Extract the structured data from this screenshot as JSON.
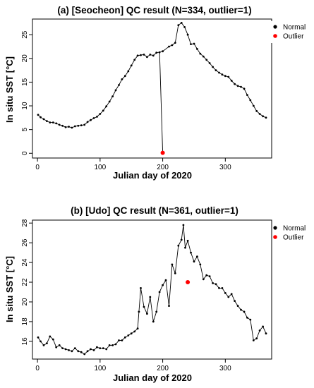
{
  "chart_data": [
    {
      "type": "line",
      "title": "(a) [Seocheon] QC result (N=334, outlier=1)",
      "xlabel": "Julian day of 2020",
      "ylabel": "In situ SST [°C]",
      "xlim": [
        -8,
        374
      ],
      "ylim": [
        -1,
        28.3
      ],
      "xticks": [
        0,
        100,
        200,
        300
      ],
      "yticks": [
        0,
        5,
        10,
        15,
        20,
        25
      ],
      "legend": {
        "placement": "top-right",
        "entries": [
          "Normal",
          "Outlier"
        ]
      },
      "colors": {
        "normal": "#000000",
        "outlier": "#ff0000"
      },
      "series": [
        {
          "name": "Normal",
          "x": [
            1,
            5,
            10,
            15,
            20,
            25,
            30,
            35,
            40,
            45,
            50,
            55,
            60,
            65,
            70,
            75,
            80,
            85,
            90,
            95,
            100,
            105,
            110,
            115,
            120,
            125,
            130,
            135,
            140,
            145,
            150,
            155,
            160,
            165,
            170,
            175,
            180,
            185,
            190,
            195,
            200,
            210,
            215,
            220,
            225,
            230,
            235,
            240,
            245,
            250,
            255,
            260,
            265,
            270,
            275,
            280,
            285,
            290,
            295,
            300,
            305,
            310,
            315,
            320,
            325,
            330,
            335,
            340,
            345,
            350,
            355,
            360,
            365
          ],
          "y": [
            8.1,
            7.6,
            7.2,
            6.8,
            6.5,
            6.5,
            6.3,
            6.0,
            5.8,
            5.5,
            5.6,
            5.4,
            5.7,
            5.8,
            5.9,
            6.0,
            6.6,
            7.0,
            7.4,
            7.7,
            8.3,
            9.0,
            9.9,
            10.9,
            12.0,
            13.3,
            14.4,
            15.6,
            16.3,
            17.3,
            18.5,
            19.7,
            20.6,
            20.7,
            20.8,
            20.3,
            20.8,
            20.6,
            21.2,
            21.3,
            21.5,
            22.5,
            22.8,
            23.3,
            27.0,
            27.5,
            26.6,
            25.0,
            23.0,
            23.1,
            22.0,
            21.0,
            20.4,
            19.7,
            19.0,
            18.2,
            17.5,
            17.0,
            16.6,
            16.3,
            16.1,
            15.3,
            14.6,
            14.2,
            14.0,
            13.6,
            12.3,
            11.2,
            10.0,
            8.9,
            8.3,
            7.8,
            7.5
          ]
        }
      ],
      "gap": {
        "from_x": 195,
        "from_y": 21.3,
        "to_x": 200,
        "to_y": 0.1
      },
      "outlier": {
        "x": 200,
        "y": 0.1
      }
    },
    {
      "type": "line",
      "title": "(b) [Udo] QC result (N=361, outlier=1)",
      "xlabel": "Julian day of 2020",
      "ylabel": "In situ SST [°C]",
      "xlim": [
        -8,
        374
      ],
      "ylim": [
        14.2,
        28.3
      ],
      "xticks": [
        0,
        100,
        200,
        300
      ],
      "yticks": [
        16,
        18,
        20,
        22,
        24,
        26,
        28
      ],
      "legend": {
        "placement": "top-right",
        "entries": [
          "Normal",
          "Outlier"
        ]
      },
      "colors": {
        "normal": "#000000",
        "outlier": "#ff0000"
      },
      "series": [
        {
          "name": "Normal",
          "x": [
            1,
            5,
            10,
            15,
            20,
            25,
            30,
            35,
            40,
            45,
            50,
            55,
            60,
            65,
            70,
            75,
            80,
            85,
            90,
            95,
            100,
            105,
            110,
            115,
            120,
            125,
            130,
            135,
            140,
            145,
            150,
            155,
            160,
            162,
            165,
            170,
            175,
            180,
            185,
            190,
            195,
            200,
            205,
            210,
            215,
            220,
            225,
            230,
            233,
            236,
            240,
            245,
            250,
            255,
            260,
            265,
            270,
            275,
            280,
            285,
            290,
            295,
            300,
            305,
            310,
            315,
            320,
            325,
            330,
            335,
            340,
            345,
            350,
            355,
            360,
            365
          ],
          "y": [
            16.4,
            16.0,
            15.6,
            15.8,
            16.5,
            16.2,
            15.4,
            15.6,
            15.3,
            15.2,
            15.1,
            15.0,
            15.3,
            15.0,
            14.9,
            14.7,
            15.0,
            15.2,
            15.1,
            15.4,
            15.3,
            15.3,
            15.2,
            15.6,
            15.6,
            15.7,
            16.1,
            16.1,
            16.4,
            16.6,
            16.8,
            17.0,
            17.3,
            19.0,
            21.4,
            19.5,
            18.8,
            20.5,
            18.0,
            19.0,
            21.0,
            21.7,
            22.2,
            19.6,
            23.8,
            22.9,
            25.7,
            26.3,
            27.8,
            25.5,
            26.2,
            25.0,
            24.1,
            24.6,
            23.8,
            22.3,
            22.7,
            22.6,
            21.9,
            21.8,
            21.4,
            21.4,
            20.9,
            20.5,
            20.8,
            20.1,
            19.6,
            19.2,
            19.0,
            18.4,
            18.2,
            16.1,
            16.3,
            17.1,
            17.5,
            16.8
          ]
        }
      ],
      "outlier": {
        "x": 240,
        "y": 22.0
      }
    }
  ]
}
